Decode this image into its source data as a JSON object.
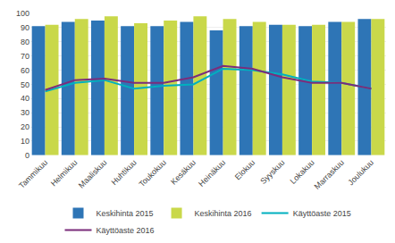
{
  "chart_data": {
    "type": "bar",
    "categories": [
      "Tammikuu",
      "Helmikuu",
      "Maaliskuu",
      "Huhtikuu",
      "Toukokuu",
      "Kesäkuu",
      "Heinäkuu",
      "Elokuu",
      "Syyskuu",
      "Lokakuu",
      "Marraskuu",
      "Joulukuu"
    ],
    "series": [
      {
        "name": "Keskihinta 2015",
        "type": "bar",
        "color": "#2E75B6",
        "values": [
          91,
          94,
          95,
          91,
          91,
          94,
          88,
          91,
          92,
          91,
          94,
          96
        ]
      },
      {
        "name": "Keskihinta 2016",
        "type": "bar",
        "color": "#C9D84A",
        "values": [
          92,
          96,
          98,
          93,
          95,
          98,
          96,
          94,
          92,
          92,
          94,
          96
        ]
      },
      {
        "name": "Käyttöaste 2015",
        "type": "line",
        "color": "#00B0BF",
        "values": [
          45,
          51,
          53,
          47,
          49,
          50,
          61,
          60,
          57,
          52,
          51,
          47
        ]
      },
      {
        "name": "Käyttöaste 2016",
        "type": "line",
        "color": "#7B2D7B",
        "values": [
          46,
          53,
          54,
          51,
          51,
          55,
          63,
          61,
          55,
          51,
          51,
          47
        ]
      }
    ],
    "ylim": [
      0,
      100
    ],
    "yticks": [
      0,
      10,
      20,
      30,
      40,
      50,
      60,
      70,
      80,
      90,
      100
    ],
    "grid": true,
    "legend": "bottom"
  }
}
